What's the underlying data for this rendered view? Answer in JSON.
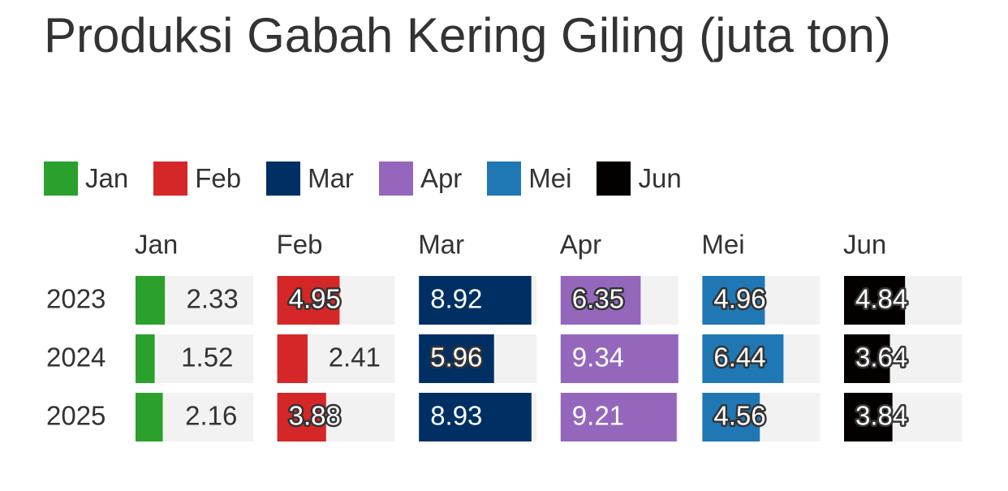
{
  "chart_data": {
    "type": "bar",
    "title": "Produksi Gabah Kering Giling (juta ton)",
    "categories": [
      "2023",
      "2024",
      "2025"
    ],
    "xlim": [
      0,
      9.34
    ],
    "series": [
      {
        "name": "Jan",
        "color": "#2ca02c",
        "values": [
          2.33,
          1.52,
          2.16
        ]
      },
      {
        "name": "Feb",
        "color": "#d62728",
        "values": [
          4.95,
          2.41,
          3.88
        ]
      },
      {
        "name": "Mar",
        "color": "#002f63",
        "values": [
          8.92,
          5.96,
          8.93
        ]
      },
      {
        "name": "Apr",
        "color": "#9467bd",
        "values": [
          6.35,
          9.34,
          9.21
        ]
      },
      {
        "name": "Mei",
        "color": "#1f77b4",
        "values": [
          4.96,
          6.44,
          4.56
        ]
      },
      {
        "name": "Jun",
        "color": "#050000",
        "values": [
          4.84,
          3.64,
          3.84
        ]
      }
    ]
  }
}
